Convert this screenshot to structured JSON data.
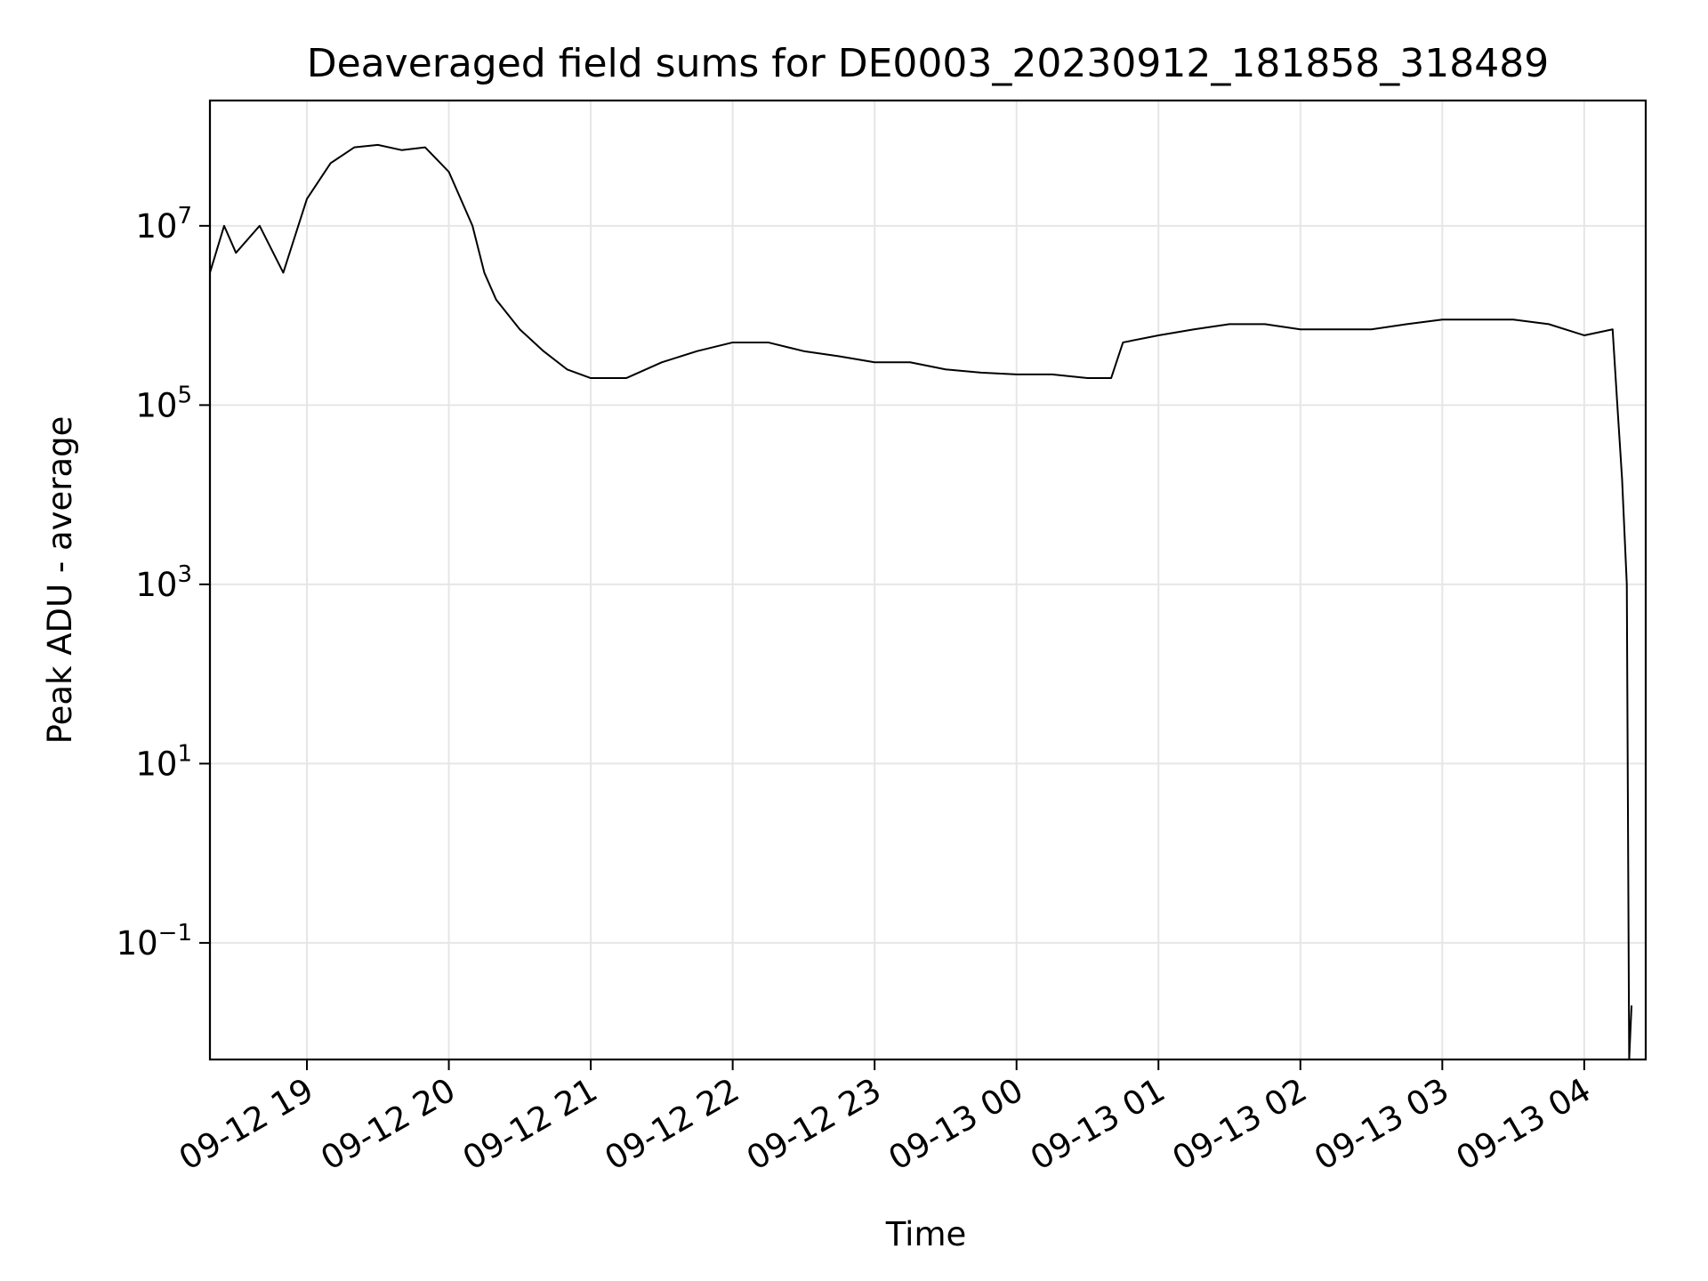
{
  "chart_data": {
    "type": "line",
    "title": "Deaveraged field sums for DE0003_20230912_181858_318489",
    "xlabel": "Time",
    "ylabel": "Peak ADU - average",
    "yscale": "log",
    "grid": true,
    "line_color": "#000000",
    "x_ticks": [
      {
        "time": "2023-09-12T19:00",
        "label": "09-12 19"
      },
      {
        "time": "2023-09-12T20:00",
        "label": "09-12 20"
      },
      {
        "time": "2023-09-12T21:00",
        "label": "09-12 21"
      },
      {
        "time": "2023-09-12T22:00",
        "label": "09-12 22"
      },
      {
        "time": "2023-09-12T23:00",
        "label": "09-12 23"
      },
      {
        "time": "2023-09-13T00:00",
        "label": "09-13 00"
      },
      {
        "time": "2023-09-13T01:00",
        "label": "09-13 01"
      },
      {
        "time": "2023-09-13T02:00",
        "label": "09-13 02"
      },
      {
        "time": "2023-09-13T03:00",
        "label": "09-13 03"
      },
      {
        "time": "2023-09-13T04:00",
        "label": "09-13 04"
      }
    ],
    "y_ticks": [
      {
        "value": 0.1,
        "base": "10",
        "exp": "−1"
      },
      {
        "value": 10,
        "base": "10",
        "exp": "1"
      },
      {
        "value": 1000,
        "base": "10",
        "exp": "3"
      },
      {
        "value": 100000,
        "base": "10",
        "exp": "5"
      },
      {
        "value": 10000000,
        "base": "10",
        "exp": "7"
      }
    ],
    "xlim": [
      "2023-09-12T18:19",
      "2023-09-13T04:26"
    ],
    "ylim": [
      0.005,
      250000000
    ],
    "series": [
      {
        "points": [
          [
            "2023-09-12T18:19",
            3000000
          ],
          [
            "2023-09-12T18:25",
            10000000
          ],
          [
            "2023-09-12T18:30",
            5000000
          ],
          [
            "2023-09-12T18:40",
            10000000
          ],
          [
            "2023-09-12T18:50",
            3000000
          ],
          [
            "2023-09-12T19:00",
            20000000
          ],
          [
            "2023-09-12T19:10",
            50000000
          ],
          [
            "2023-09-12T19:20",
            75000000
          ],
          [
            "2023-09-12T19:30",
            80000000
          ],
          [
            "2023-09-12T19:40",
            70000000
          ],
          [
            "2023-09-12T19:50",
            75000000
          ],
          [
            "2023-09-12T20:00",
            40000000
          ],
          [
            "2023-09-12T20:10",
            10000000
          ],
          [
            "2023-09-12T20:15",
            3000000
          ],
          [
            "2023-09-12T20:20",
            1500000
          ],
          [
            "2023-09-12T20:30",
            700000
          ],
          [
            "2023-09-12T20:40",
            400000
          ],
          [
            "2023-09-12T20:50",
            250000
          ],
          [
            "2023-09-12T21:00",
            200000
          ],
          [
            "2023-09-12T21:15",
            200000
          ],
          [
            "2023-09-12T21:30",
            300000
          ],
          [
            "2023-09-12T21:45",
            400000
          ],
          [
            "2023-09-12T22:00",
            500000
          ],
          [
            "2023-09-12T22:15",
            500000
          ],
          [
            "2023-09-12T22:30",
            400000
          ],
          [
            "2023-09-12T22:45",
            350000
          ],
          [
            "2023-09-12T23:00",
            300000
          ],
          [
            "2023-09-12T23:15",
            300000
          ],
          [
            "2023-09-12T23:30",
            250000
          ],
          [
            "2023-09-12T23:45",
            230000
          ],
          [
            "2023-09-13T00:00",
            220000
          ],
          [
            "2023-09-13T00:15",
            220000
          ],
          [
            "2023-09-13T00:30",
            200000
          ],
          [
            "2023-09-13T00:40",
            200000
          ],
          [
            "2023-09-13T00:45",
            500000
          ],
          [
            "2023-09-13T01:00",
            600000
          ],
          [
            "2023-09-13T01:15",
            700000
          ],
          [
            "2023-09-13T01:30",
            800000
          ],
          [
            "2023-09-13T01:45",
            800000
          ],
          [
            "2023-09-13T02:00",
            700000
          ],
          [
            "2023-09-13T02:15",
            700000
          ],
          [
            "2023-09-13T02:30",
            700000
          ],
          [
            "2023-09-13T02:45",
            800000
          ],
          [
            "2023-09-13T03:00",
            900000
          ],
          [
            "2023-09-13T03:15",
            900000
          ],
          [
            "2023-09-13T03:30",
            900000
          ],
          [
            "2023-09-13T03:45",
            800000
          ],
          [
            "2023-09-13T04:00",
            600000
          ],
          [
            "2023-09-13T04:12",
            700000
          ],
          [
            "2023-09-13T04:14",
            100000
          ],
          [
            "2023-09-13T04:16",
            15000
          ],
          [
            "2023-09-13T04:18",
            1000
          ],
          [
            "2023-09-13T04:19",
            0.005
          ],
          [
            "2023-09-13T04:20",
            0.02
          ]
        ]
      }
    ]
  }
}
